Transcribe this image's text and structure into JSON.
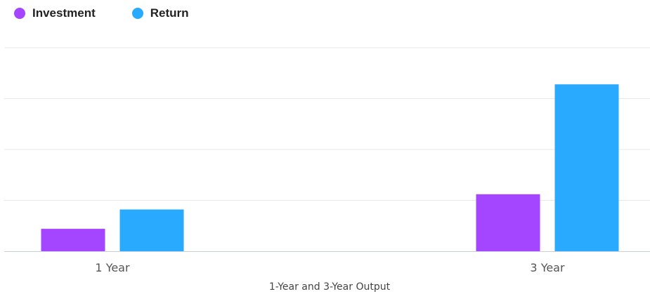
{
  "chart_data": {
    "type": "bar",
    "title": "",
    "xlabel": "1-Year and 3-Year Output",
    "ylabel": "",
    "categories": [
      "1 Year",
      "3 Year"
    ],
    "series": [
      {
        "name": "Investment",
        "color": "#a445ff",
        "values": [
          0.44,
          1.12
        ]
      },
      {
        "name": "Return",
        "color": "#2aaaff",
        "values": [
          0.82,
          3.28
        ]
      }
    ],
    "ylim": [
      0,
      4
    ],
    "grid": true,
    "legend": "top-left"
  }
}
